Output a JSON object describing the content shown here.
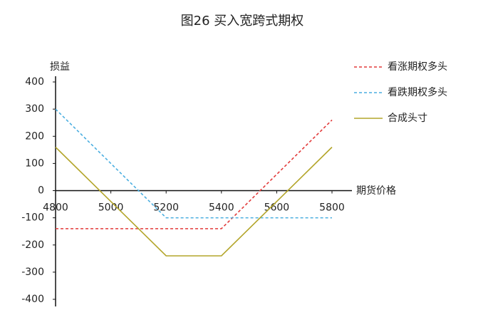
{
  "chart_data": {
    "type": "line",
    "title": "图26  买入宽跨式期权",
    "y_label": "损益",
    "x_label": "期货价格",
    "x": [
      4800,
      5200,
      5400,
      5800
    ],
    "series": [
      {
        "name": "看涨期权多头",
        "color": "#e23a3a",
        "dash": "dashed",
        "values": [
          -140,
          -140,
          -140,
          260
        ]
      },
      {
        "name": "看跌期权多头",
        "color": "#4aaee0",
        "dash": "dashed",
        "values": [
          300,
          -100,
          -100,
          -100
        ]
      },
      {
        "name": "合成头寸",
        "color": "#b3a52a",
        "dash": "solid",
        "values": [
          160,
          -240,
          -240,
          160
        ]
      }
    ],
    "xlim": [
      4800,
      5800
    ],
    "xticks": [
      4800,
      5000,
      5200,
      5400,
      5600,
      5800
    ],
    "ylim": [
      -400,
      400
    ],
    "yticks": [
      -400,
      -300,
      -200,
      -100,
      0,
      100,
      200,
      300,
      400
    ],
    "legend": "right"
  }
}
